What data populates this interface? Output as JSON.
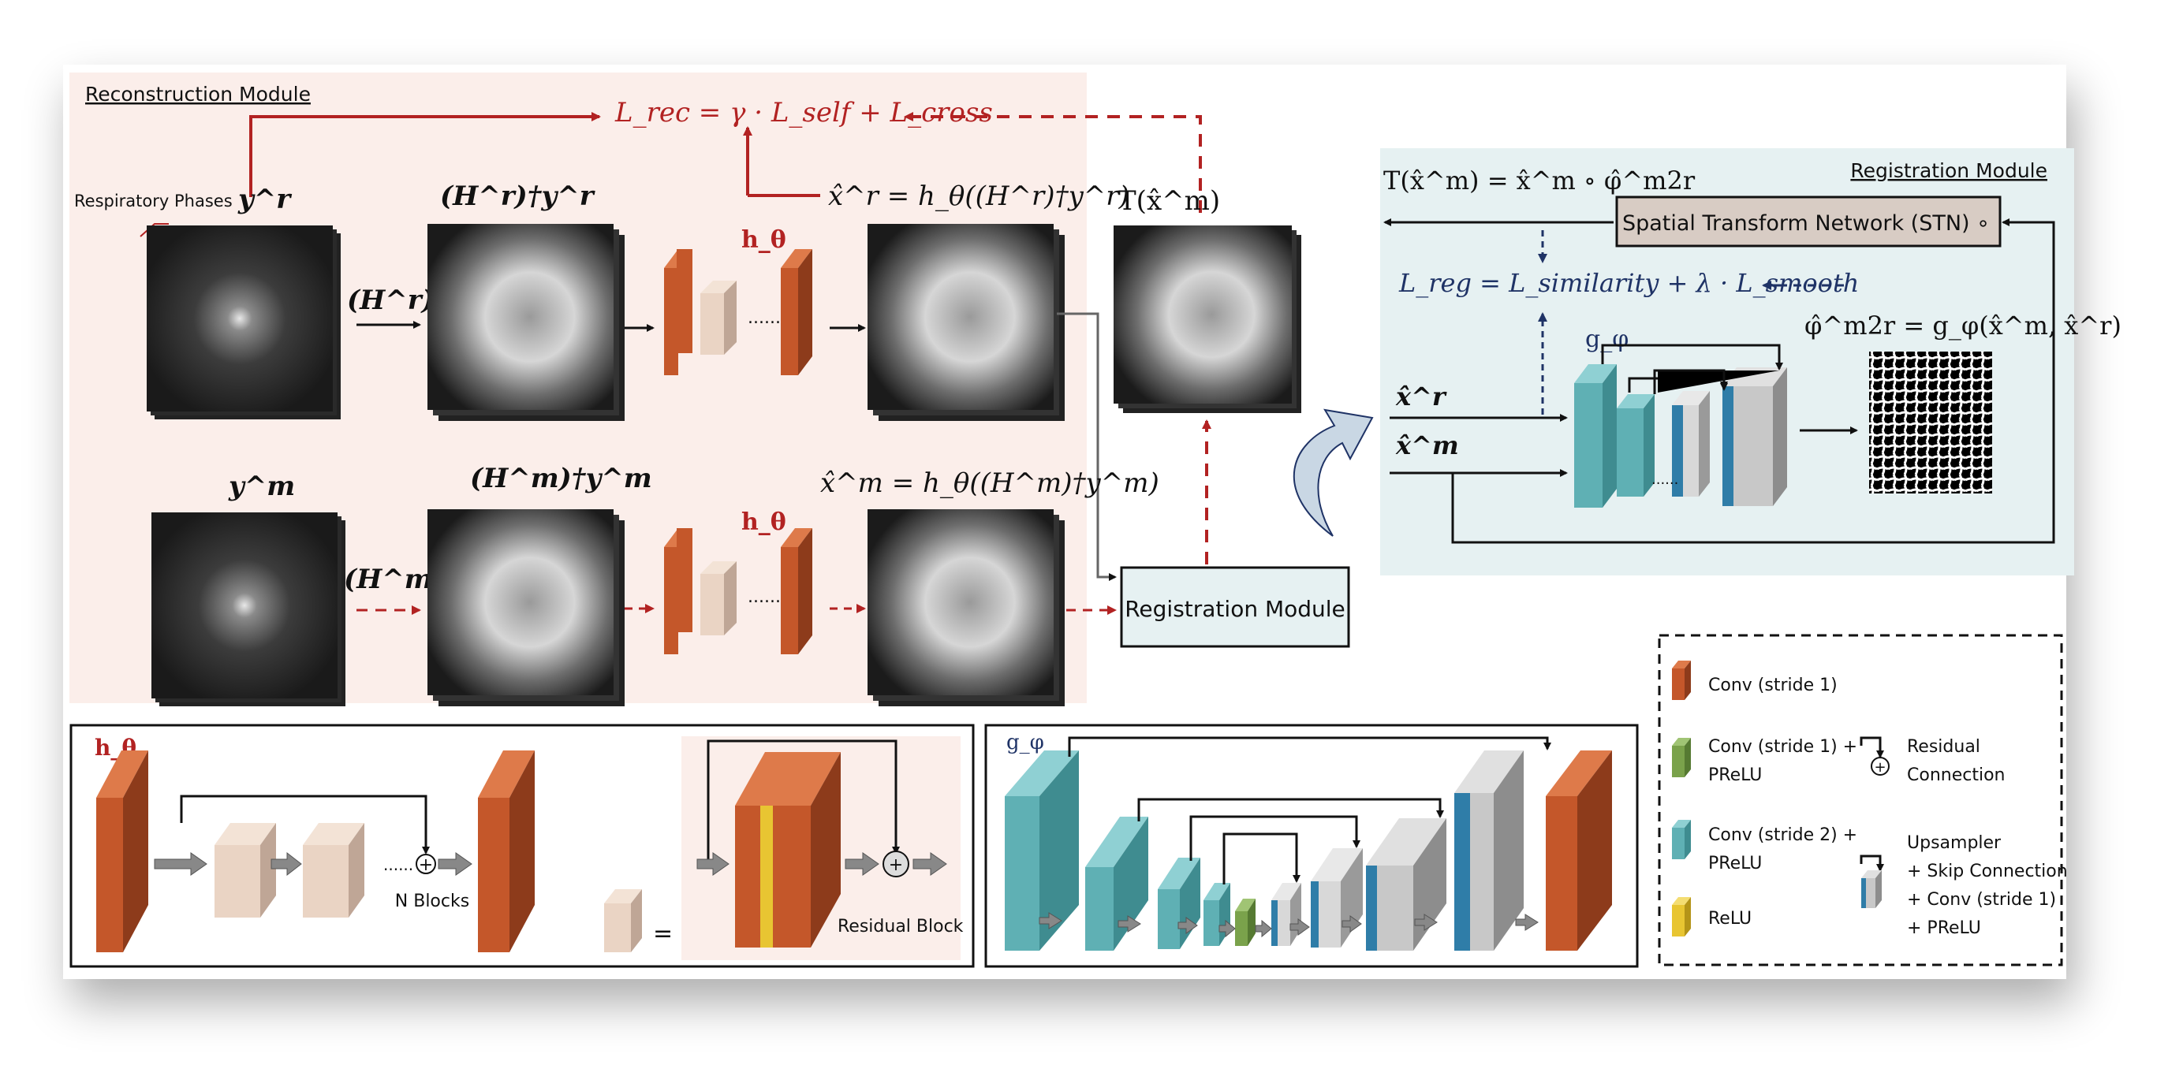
{
  "colors": {
    "recon_bg": "#fbeeea",
    "reg_bg": "#e6f1f2",
    "red": "#b22222",
    "navy": "#1f3366",
    "conv_orange": "#c4572a",
    "residual_beige": "#ead4c4",
    "teal": "#5fb0b4",
    "blue": "#2f7da8",
    "gray": "#c8c8c8",
    "green": "#7aa24b",
    "yellow": "#e8c532"
  },
  "recon": {
    "module_title": "Reconstruction Module",
    "respiratory_phases": "Respiratory Phases",
    "loss_rec": "L_rec = γ · L_self + L_cross",
    "y_r": "y^r",
    "y_m": "y^m",
    "backproj_r": "(H^r)†y^r",
    "backproj_m": "(H^m)†y^m",
    "op_r": "(H^r)†",
    "op_m": "(H^m)†",
    "h_theta": "h_θ",
    "x_hat_r": "x̂^r = h_θ((H^r)†y^r)",
    "x_hat_m": "x̂^m = h_θ((H^m)†y^m)",
    "ellipsis": "......",
    "t_x_m": "T(x̂^m)",
    "reg_box": "Registration Module"
  },
  "reg": {
    "module_title": "Registration Module",
    "transform_eq": "T(x̂^m) = x̂^m ∘ φ̂^m2r",
    "stn": "Spatial Transform Network (STN)  ∘",
    "loss_reg": "L_reg = L_similarity + λ · L_smooth",
    "g_phi": "g_φ",
    "phi_eq": "φ̂^m2r = g_φ(x̂^m, x̂^r)",
    "x_r": "x̂^r",
    "x_m": "x̂^m",
    "ellipsis": "......"
  },
  "h_detail": {
    "title": "h_θ",
    "n_blocks": "N Blocks",
    "equals": "=",
    "ellipsis": "......",
    "residual_block": "Residual Block"
  },
  "g_detail": {
    "title": "g_φ"
  },
  "legend": {
    "conv1": "Conv (stride 1)",
    "conv1_prelu_1": "Conv (stride 1) +",
    "conv1_prelu_2": "PReLU",
    "conv2_prelu_1": "Conv (stride 2) +",
    "conv2_prelu_2": "PReLU",
    "relu": "ReLU",
    "residual_1": "Residual",
    "residual_2": "Connection",
    "up_1": "Upsampler",
    "up_2": "+ Skip Connection",
    "up_3": "+ Conv (stride 1)",
    "up_4": "+ PReLU"
  }
}
